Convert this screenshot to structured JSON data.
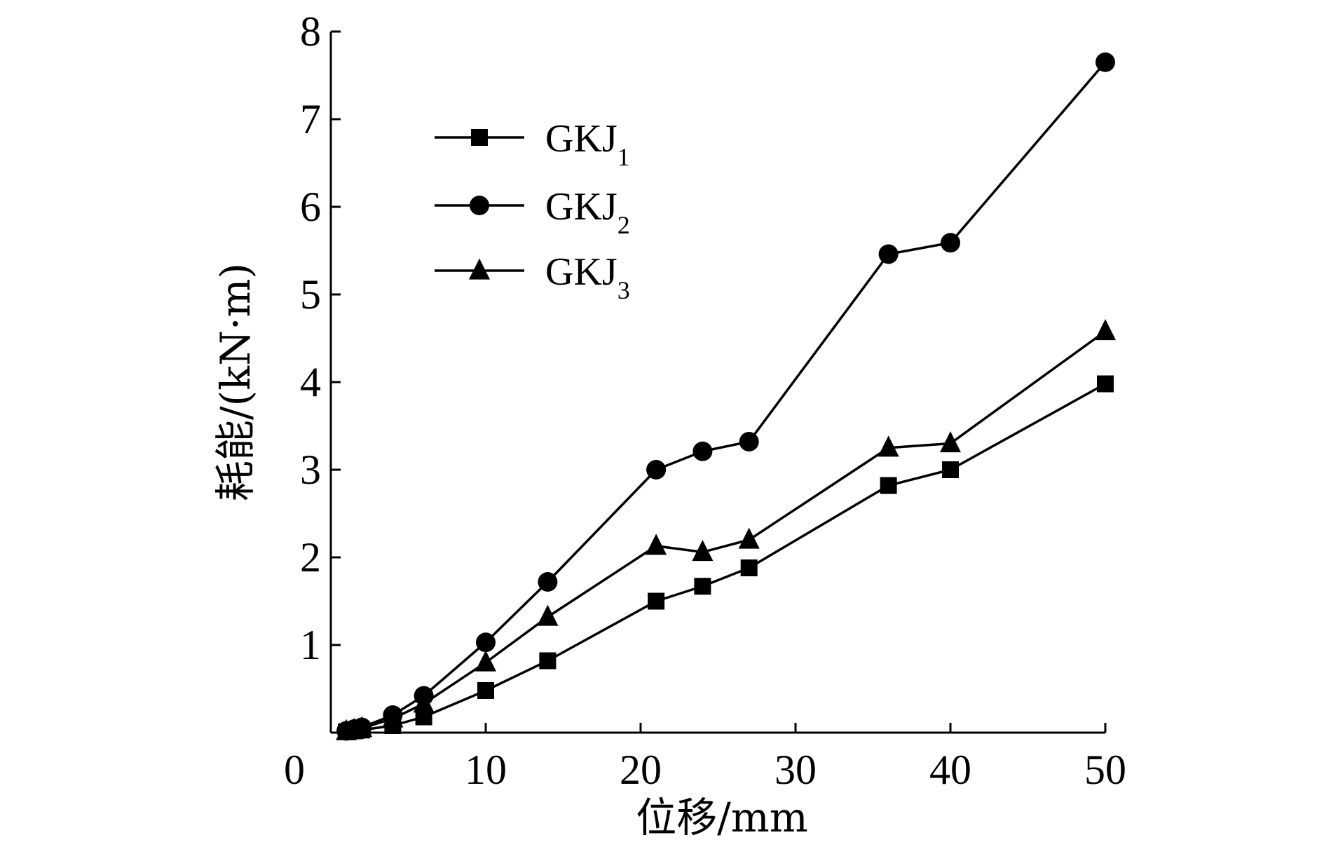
{
  "chart_data": {
    "type": "line",
    "title": "",
    "xlabel": "位移/mm",
    "ylabel": "耗能/(kN·m)",
    "xlim": [
      0,
      50
    ],
    "ylim": [
      0,
      8
    ],
    "x_ticks": [
      0,
      10,
      20,
      30,
      40,
      50
    ],
    "y_ticks": [
      1,
      2,
      3,
      4,
      5,
      6,
      7,
      8
    ],
    "x_tick_labels": [
      "0",
      "10",
      "20",
      "30",
      "40",
      "50"
    ],
    "y_tick_labels": [
      "1",
      "2",
      "3",
      "4",
      "5",
      "6",
      "7",
      "8"
    ],
    "legend_position": "top-left",
    "grid": false,
    "series": [
      {
        "name": "GKJ1",
        "label_main": "GKJ",
        "label_sub": "1",
        "marker": "square",
        "x": [
          1,
          1.5,
          2,
          4,
          6,
          10,
          14,
          21,
          24,
          27,
          36,
          40,
          50
        ],
        "y": [
          0.01,
          0.02,
          0.03,
          0.08,
          0.18,
          0.48,
          0.82,
          1.5,
          1.67,
          1.88,
          2.82,
          3.0,
          3.98
        ]
      },
      {
        "name": "GKJ2",
        "label_main": "GKJ",
        "label_sub": "2",
        "marker": "circle",
        "x": [
          1,
          1.5,
          2,
          4,
          6,
          10,
          14,
          21,
          24,
          27,
          36,
          40,
          50
        ],
        "y": [
          0.02,
          0.04,
          0.06,
          0.2,
          0.42,
          1.03,
          1.72,
          3.0,
          3.21,
          3.32,
          5.46,
          5.59,
          7.65
        ]
      },
      {
        "name": "GKJ3",
        "label_main": "GKJ",
        "label_sub": "3",
        "marker": "triangle",
        "x": [
          1,
          1.5,
          2,
          4,
          6,
          10,
          14,
          21,
          24,
          27,
          36,
          40,
          50
        ],
        "y": [
          0.015,
          0.03,
          0.05,
          0.16,
          0.33,
          0.8,
          1.32,
          2.13,
          2.06,
          2.2,
          3.25,
          3.3,
          4.58
        ]
      }
    ]
  }
}
